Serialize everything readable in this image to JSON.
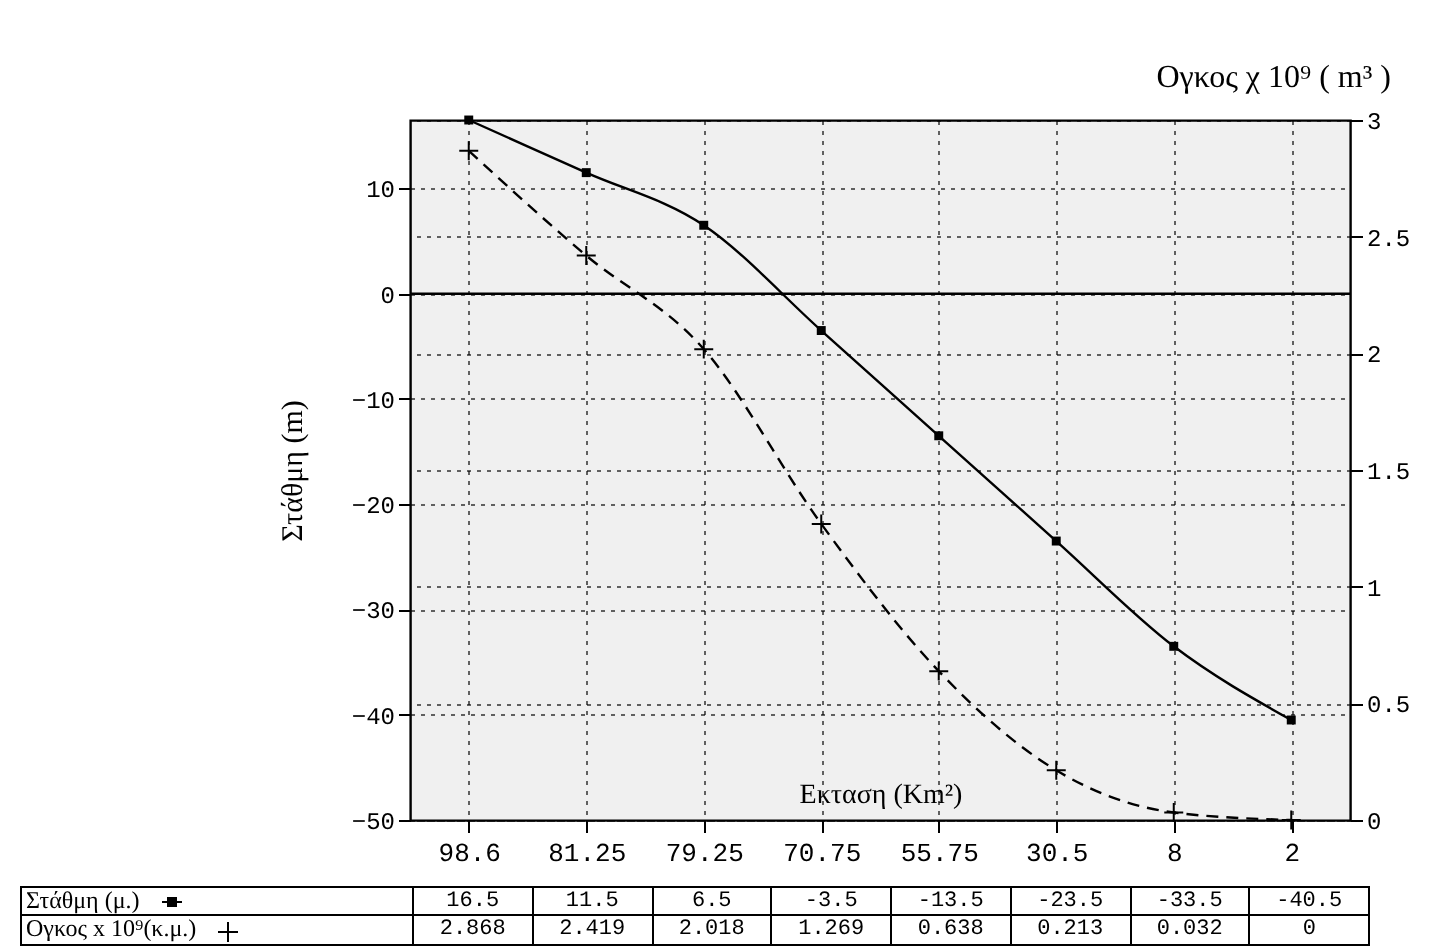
{
  "chart_data": {
    "type": "line",
    "xlabel": "Εκταση (Km²)",
    "ylabel": "Στάθμη (m)",
    "y2label": "Ογκος χ 10⁹ ( m³ )",
    "categories": [
      "98.6",
      "81.25",
      "79.25",
      "70.75",
      "55.75",
      "30.5",
      "8",
      "2"
    ],
    "series": [
      {
        "name": "Στάθμη (μ.)",
        "color": "#000000",
        "marker": "square",
        "line_style": "solid",
        "values": [
          16.5,
          11.5,
          6.5,
          -3.5,
          -13.5,
          -23.5,
          -33.5,
          -40.5
        ]
      },
      {
        "name": "Ογκος x 10⁹(κ.μ.)",
        "color": "#000000",
        "marker": "cross",
        "line_style": "dashed",
        "axis": "y2",
        "values": [
          2.868,
          2.419,
          2.018,
          1.269,
          0.638,
          0.213,
          0.032,
          0
        ]
      }
    ],
    "ylim": [
      -50,
      16.5
    ],
    "yticks": [
      -50,
      -40,
      -30,
      -20,
      -10,
      0,
      10
    ],
    "y2lim": [
      0,
      3
    ],
    "y2ticks": [
      0,
      0.5,
      1,
      1.5,
      2,
      2.5,
      3
    ],
    "ref_lines": [
      {
        "axis": "y",
        "value": 0,
        "color": "#000000",
        "line_style": "solid"
      }
    ],
    "grid": true,
    "legend": "bottom",
    "data_labels": true
  }
}
